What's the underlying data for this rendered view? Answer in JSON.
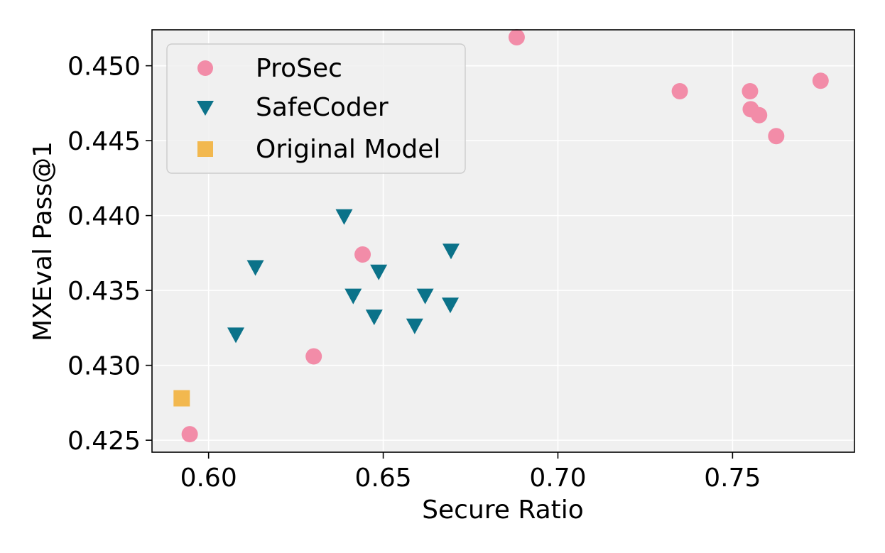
{
  "chart_data": {
    "type": "scatter",
    "title": "",
    "xlabel": "Secure Ratio",
    "ylabel": "MXEval Pass@1",
    "xlim": [
      0.5838,
      0.7849
    ],
    "ylim": [
      0.4242,
      0.4524
    ],
    "xticks": [
      0.6,
      0.65,
      0.7,
      0.75
    ],
    "xtick_labels": [
      "0.60",
      "0.65",
      "0.70",
      "0.75"
    ],
    "yticks": [
      0.425,
      0.43,
      0.435,
      0.44,
      0.445,
      0.45
    ],
    "ytick_labels": [
      "0.425",
      "0.430",
      "0.435",
      "0.440",
      "0.445",
      "0.450"
    ],
    "grid": true,
    "background": "#f0f0f0",
    "legend_position": "top-left",
    "series": [
      {
        "name": "ProSec",
        "marker": "circle",
        "color": "#f28ca8",
        "points": [
          {
            "x": 0.5946,
            "y": 0.4254
          },
          {
            "x": 0.6301,
            "y": 0.4306
          },
          {
            "x": 0.6441,
            "y": 0.4374
          },
          {
            "x": 0.6882,
            "y": 0.4519
          },
          {
            "x": 0.7349,
            "y": 0.4483
          },
          {
            "x": 0.755,
            "y": 0.4483
          },
          {
            "x": 0.7552,
            "y": 0.4471
          },
          {
            "x": 0.7576,
            "y": 0.4467
          },
          {
            "x": 0.7625,
            "y": 0.4453
          },
          {
            "x": 0.7752,
            "y": 0.449
          }
        ]
      },
      {
        "name": "SafeCoder",
        "marker": "triangle-down",
        "color": "#0b7289",
        "points": [
          {
            "x": 0.6078,
            "y": 0.432
          },
          {
            "x": 0.6134,
            "y": 0.4365
          },
          {
            "x": 0.6388,
            "y": 0.4399
          },
          {
            "x": 0.6414,
            "y": 0.4346
          },
          {
            "x": 0.6474,
            "y": 0.4332
          },
          {
            "x": 0.6487,
            "y": 0.4362
          },
          {
            "x": 0.659,
            "y": 0.4326
          },
          {
            "x": 0.662,
            "y": 0.4346
          },
          {
            "x": 0.6692,
            "y": 0.434
          },
          {
            "x": 0.6694,
            "y": 0.4376
          }
        ]
      },
      {
        "name": "Original Model",
        "marker": "square",
        "color": "#f2b84f",
        "points": [
          {
            "x": 0.5923,
            "y": 0.4278
          }
        ]
      }
    ]
  }
}
